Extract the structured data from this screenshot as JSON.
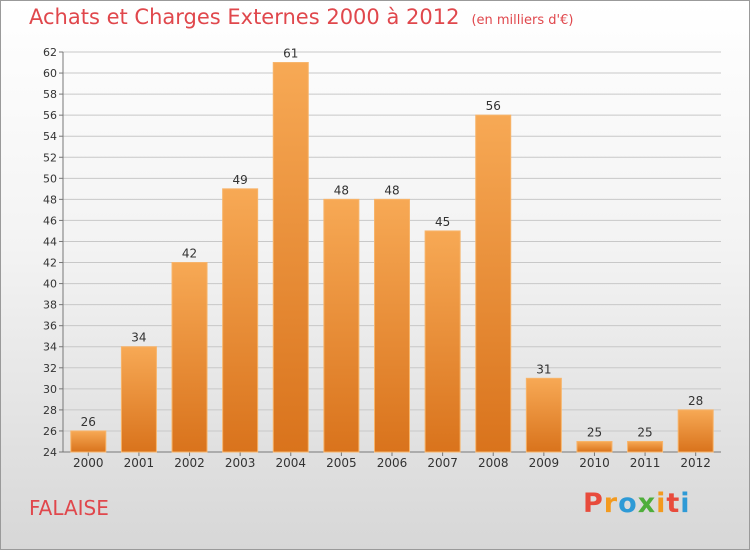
{
  "header": {
    "title": "Achats et Charges Externes 2000 à 2012",
    "unit": "(en milliers d'€)"
  },
  "footer": {
    "town": "FALAISE",
    "logo_letters": [
      "P",
      "r",
      "o",
      "x",
      "i",
      "t",
      "i"
    ],
    "logo_colors": [
      "#e84b3c",
      "#f39a1e",
      "#2e9ad6",
      "#4fae3b",
      "#f39a1e",
      "#e84b3c",
      "#2e9ad6"
    ]
  },
  "colors": {
    "title": "#e0474c",
    "bar_light": "#f7a955",
    "bar_dark": "#d9731c",
    "grid": "#c8c8c8"
  },
  "chart_data": {
    "type": "bar",
    "title": "Achats et Charges Externes 2000 à 2012",
    "categories": [
      "2000",
      "2001",
      "2002",
      "2003",
      "2004",
      "2005",
      "2006",
      "2007",
      "2008",
      "2009",
      "2010",
      "2011",
      "2012"
    ],
    "values": [
      26,
      34,
      42,
      49,
      61,
      48,
      48,
      45,
      56,
      31,
      25,
      25,
      28
    ],
    "ylim": [
      24,
      62
    ],
    "yticks": [
      24,
      26,
      28,
      30,
      32,
      34,
      36,
      38,
      40,
      42,
      44,
      46,
      48,
      50,
      52,
      54,
      56,
      58,
      60,
      62
    ],
    "grid": true,
    "data_labels": true
  }
}
